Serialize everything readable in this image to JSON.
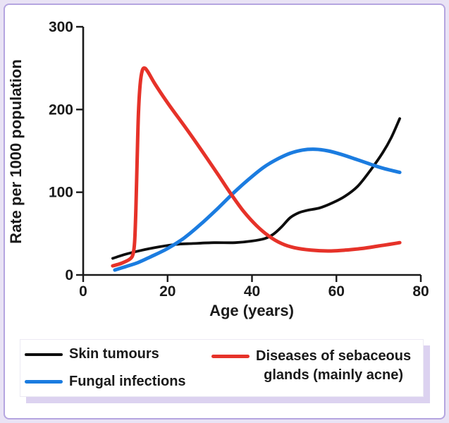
{
  "figure": {
    "outer_background": "#e9e3f5",
    "panel_background": "#ffffff",
    "panel_border_color": "#b5a5e0",
    "legend_shadow_color": "#dcd2f0",
    "text_color": "#1a1a1a"
  },
  "chart_data": {
    "type": "line",
    "title": "",
    "xlabel": "Age (years)",
    "ylabel": "Rate per 1000 population",
    "xlim": [
      0,
      80
    ],
    "ylim": [
      0,
      300
    ],
    "x_ticks": [
      0,
      20,
      40,
      60,
      80
    ],
    "y_ticks": [
      0,
      100,
      200,
      300
    ],
    "grid": false,
    "legend_position": "bottom",
    "series": [
      {
        "name": "Skin tumours",
        "color": "#0d0d0d",
        "points": [
          [
            7,
            20
          ],
          [
            10,
            25
          ],
          [
            14,
            30
          ],
          [
            18,
            34
          ],
          [
            22,
            37
          ],
          [
            26,
            38
          ],
          [
            31,
            39
          ],
          [
            36,
            39
          ],
          [
            40,
            41
          ],
          [
            43,
            44
          ],
          [
            45,
            49
          ],
          [
            47,
            58
          ],
          [
            49,
            69
          ],
          [
            51,
            75
          ],
          [
            53,
            78
          ],
          [
            56,
            81
          ],
          [
            59,
            87
          ],
          [
            62,
            95
          ],
          [
            65,
            107
          ],
          [
            68,
            126
          ],
          [
            71,
            148
          ],
          [
            73,
            166
          ],
          [
            75,
            189
          ]
        ]
      },
      {
        "name": "Fungal infections",
        "color": "#1b7ce0",
        "points": [
          [
            7.5,
            6
          ],
          [
            10,
            10
          ],
          [
            13,
            15
          ],
          [
            16,
            22
          ],
          [
            20,
            32
          ],
          [
            24,
            45
          ],
          [
            28,
            62
          ],
          [
            32,
            81
          ],
          [
            36,
            101
          ],
          [
            40,
            119
          ],
          [
            43,
            131
          ],
          [
            46,
            140
          ],
          [
            49,
            147
          ],
          [
            52,
            151
          ],
          [
            55,
            152
          ],
          [
            58,
            150
          ],
          [
            61,
            146
          ],
          [
            64,
            141
          ],
          [
            68,
            134
          ],
          [
            71,
            129
          ],
          [
            75,
            124
          ]
        ]
      },
      {
        "name": "Diseases of sebaceous glands (mainly acne)",
        "color": "#e63229",
        "points": [
          [
            7,
            11
          ],
          [
            9,
            14
          ],
          [
            11,
            19
          ],
          [
            11.8,
            25
          ],
          [
            12.2,
            40
          ],
          [
            12.5,
            80
          ],
          [
            12.8,
            140
          ],
          [
            13.1,
            195
          ],
          [
            13.5,
            230
          ],
          [
            14,
            247
          ],
          [
            14.6,
            250
          ],
          [
            15.4,
            245
          ],
          [
            17,
            231
          ],
          [
            20,
            208
          ],
          [
            24,
            180
          ],
          [
            28,
            151
          ],
          [
            32,
            121
          ],
          [
            35,
            98
          ],
          [
            38,
            77
          ],
          [
            41,
            60
          ],
          [
            44,
            47
          ],
          [
            47,
            38
          ],
          [
            50,
            33
          ],
          [
            54,
            30
          ],
          [
            58,
            29
          ],
          [
            62,
            30
          ],
          [
            66,
            32
          ],
          [
            70,
            35
          ],
          [
            75,
            39
          ]
        ]
      }
    ]
  },
  "legend": {
    "entries": [
      {
        "label": "Skin tumours"
      },
      {
        "label": "Fungal infections"
      },
      {
        "label_line1": "Diseases of sebaceous",
        "label_line2": "glands (mainly acne)"
      }
    ]
  }
}
